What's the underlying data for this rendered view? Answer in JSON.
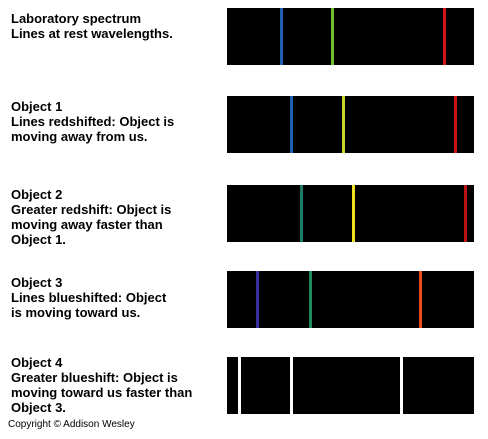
{
  "rows": [
    {
      "lines_text": [
        "Laboratory spectrum",
        "Lines at rest wavelengths."
      ],
      "spectral_lines": [
        {
          "color": "#1f5fb0",
          "position": 0.222
        },
        {
          "color": "#6fbe2d",
          "position": 0.429
        },
        {
          "color": "#d41515",
          "position": 0.882
        }
      ]
    },
    {
      "lines_text": [
        "Object 1",
        "Lines redshifted: Object is",
        "moving away from us."
      ],
      "spectral_lines": [
        {
          "color": "#1f5fb0",
          "position": 0.262
        },
        {
          "color": "#c8d62a",
          "position": 0.472
        },
        {
          "color": "#c81414",
          "position": 0.924
        }
      ]
    },
    {
      "lines_text": [
        "Object 2",
        "Greater redshift: Object is",
        "moving away faster than",
        "Object 1."
      ],
      "spectral_lines": [
        {
          "color": "#1e7a6a",
          "position": 0.302
        },
        {
          "color": "#f0e020",
          "position": 0.512
        },
        {
          "color": "#b81212",
          "position": 0.964
        }
      ]
    },
    {
      "lines_text": [
        "Object 3",
        "Lines blueshifted: Object",
        "is moving toward us."
      ],
      "spectral_lines": [
        {
          "color": "#3a2e9e",
          "position": 0.123
        },
        {
          "color": "#1e8a5a",
          "position": 0.337
        },
        {
          "color": "#e84a1a",
          "position": 0.782
        }
      ]
    },
    {
      "lines_text": [
        "Object 4",
        "Greater blueshift: Object is",
        "moving toward us faster than",
        "Object 3."
      ],
      "spectral_lines": [
        {
          "color": "#ffffff",
          "position": 0.052
        },
        {
          "color": "#ffffff",
          "position": 0.262
        },
        {
          "color": "#ffffff",
          "position": 0.707
        }
      ]
    }
  ],
  "copyright": "Copyright © Addison Wesley"
}
